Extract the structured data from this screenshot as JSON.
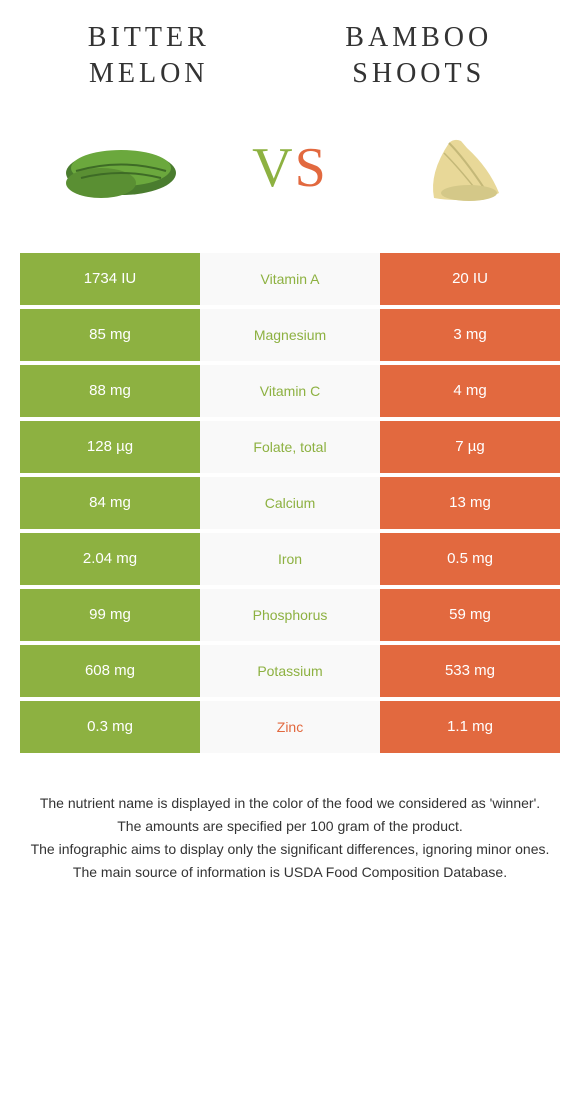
{
  "colors": {
    "green": "#8db141",
    "orange": "#e2693f",
    "bg": "#ffffff",
    "mid_bg": "#f9f9f9",
    "text": "#333333"
  },
  "left_title": "BITTER MELON",
  "right_title": "BAMBOO SHOOTS",
  "vs": {
    "v": "V",
    "s": "S"
  },
  "rows": [
    {
      "left": "1734 IU",
      "label": "Vitamin A",
      "right": "20 IU",
      "winner": "left"
    },
    {
      "left": "85 mg",
      "label": "Magnesium",
      "right": "3 mg",
      "winner": "left"
    },
    {
      "left": "88 mg",
      "label": "Vitamin C",
      "right": "4 mg",
      "winner": "left"
    },
    {
      "left": "128 µg",
      "label": "Folate, total",
      "right": "7 µg",
      "winner": "left"
    },
    {
      "left": "84 mg",
      "label": "Calcium",
      "right": "13 mg",
      "winner": "left"
    },
    {
      "left": "2.04 mg",
      "label": "Iron",
      "right": "0.5 mg",
      "winner": "left"
    },
    {
      "left": "99 mg",
      "label": "Phosphorus",
      "right": "59 mg",
      "winner": "left"
    },
    {
      "left": "608 mg",
      "label": "Potassium",
      "right": "533 mg",
      "winner": "left"
    },
    {
      "left": "0.3 mg",
      "label": "Zinc",
      "right": "1.1 mg",
      "winner": "right"
    }
  ],
  "footer": [
    "The nutrient name is displayed in the color of the food we considered as 'winner'.",
    "The amounts are specified per 100 gram of the product.",
    "The infographic aims to display only the significant differences, ignoring minor ones.",
    "The main source of information is USDA Food Composition Database."
  ]
}
